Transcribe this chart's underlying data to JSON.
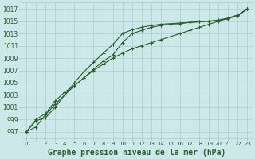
{
  "x": [
    0,
    1,
    2,
    3,
    4,
    5,
    6,
    7,
    8,
    9,
    10,
    11,
    12,
    13,
    14,
    15,
    16,
    17,
    18,
    19,
    20,
    21,
    22,
    23
  ],
  "line1": [
    997.0,
    998.8,
    999.3,
    1001.0,
    1003.0,
    1005.0,
    1006.8,
    1008.3,
    1009.8,
    1011.2,
    1013.0,
    1013.6,
    1014.0,
    1014.3,
    1014.5,
    1014.6,
    1014.7,
    1014.8,
    1014.9,
    1015.0,
    1015.1,
    1015.4,
    1015.9,
    1017.0
  ],
  "line2": [
    997.0,
    999.0,
    1000.0,
    1002.0,
    1003.5,
    1004.5,
    1005.8,
    1007.2,
    1008.5,
    1009.5,
    1011.5,
    1013.0,
    1013.5,
    1014.0,
    1014.3,
    1014.5,
    1014.6,
    1014.8,
    1014.9,
    1015.0,
    1015.2,
    1015.5,
    1016.0,
    1017.0
  ],
  "line3": [
    997.0,
    997.8,
    999.8,
    1001.5,
    1003.0,
    1004.5,
    1005.8,
    1007.0,
    1008.0,
    1009.0,
    1009.8,
    1010.5,
    1011.0,
    1011.5,
    1012.0,
    1012.5,
    1013.0,
    1013.5,
    1014.0,
    1014.5,
    1015.0,
    1015.5,
    1016.0,
    1017.0
  ],
  "ylim_min": 996.0,
  "ylim_max": 1018.0,
  "yticks": [
    997,
    999,
    1001,
    1003,
    1005,
    1007,
    1009,
    1011,
    1013,
    1015,
    1017
  ],
  "xticks": [
    0,
    1,
    2,
    3,
    4,
    5,
    6,
    7,
    8,
    9,
    10,
    11,
    12,
    13,
    14,
    15,
    16,
    17,
    18,
    19,
    20,
    21,
    22,
    23
  ],
  "bg_color": "#cce8e8",
  "grid_color": "#b0cccc",
  "line_color": "#2a5e2a",
  "xlabel": "Graphe pression niveau de la mer (hPa)",
  "xlabel_fontsize": 7.0,
  "marker": "+",
  "markersize": 3.5,
  "linewidth": 0.8,
  "figwidth": 3.2,
  "figheight": 2.0,
  "dpi": 100
}
